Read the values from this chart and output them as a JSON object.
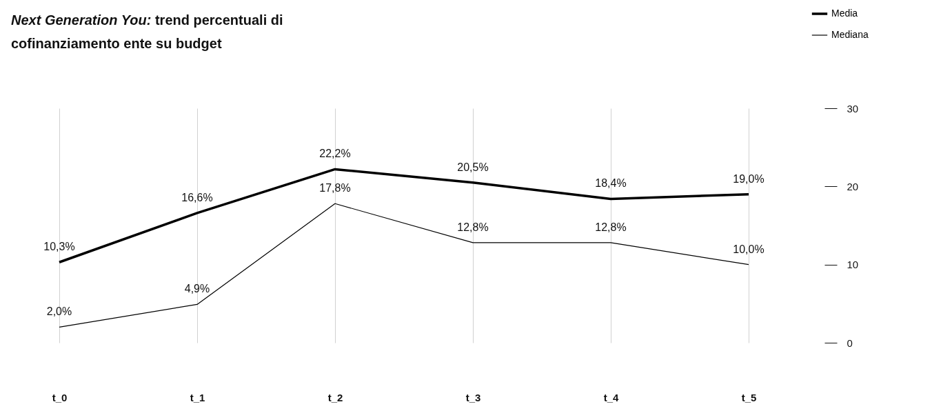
{
  "chart_data": {
    "type": "line",
    "title": "Next Generation You: trend percentuali di cofinanziamento ente su budget",
    "categories": [
      "t_0",
      "t_1",
      "t_2",
      "t_3",
      "t_4",
      "t_5"
    ],
    "series": [
      {
        "name": "Media",
        "color": "#000000",
        "values": [
          10.3,
          16.6,
          22.2,
          20.5,
          18.4,
          19.0
        ],
        "value_labels": [
          "10,3%",
          "16,6%",
          "22,2%",
          "20,5%",
          "18,4%",
          "19,0%"
        ]
      },
      {
        "name": "Mediana",
        "color": "#000000",
        "values": [
          2.0,
          4.9,
          17.8,
          12.8,
          12.8,
          10.0
        ],
        "value_labels": [
          "2,0%",
          "4,9%",
          "17,8%",
          "12,8%",
          "12,8%",
          "10,0%"
        ]
      }
    ],
    "ylim": [
      0,
      30
    ],
    "yticks": [
      0,
      10,
      20,
      30
    ],
    "grid": "x",
    "legend": "top right",
    "marker": "none",
    "line_style": "solid"
  }
}
